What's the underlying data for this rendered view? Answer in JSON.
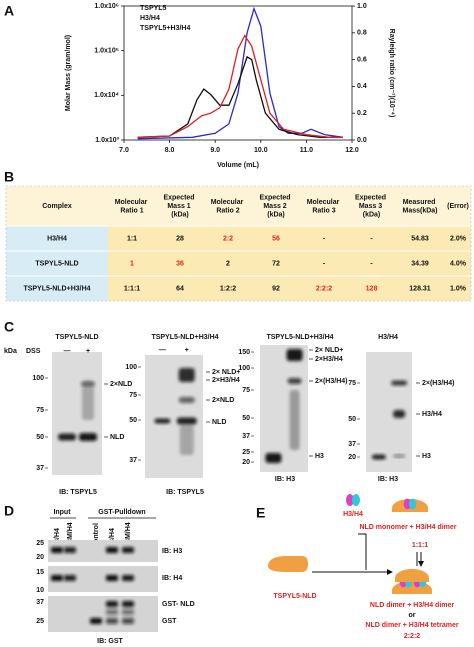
{
  "panel_a": {
    "letter": "A",
    "x_label": "Volume (mL)",
    "y_label": "Molar Mass (gram/mol)",
    "y2_label": "Rayleigh ratio (cm⁻¹)(10⁻⁴)",
    "xlim": [
      7,
      12
    ],
    "xticks": [
      {
        "value": 7,
        "label": "7.0"
      },
      {
        "value": 8,
        "label": "8.0"
      },
      {
        "value": 9,
        "label": "9.0"
      },
      {
        "value": 10,
        "label": "10.0"
      },
      {
        "value": 11,
        "label": "11.0"
      },
      {
        "value": 12,
        "label": "12.0"
      }
    ],
    "ylim": [
      1000,
      1000000
    ],
    "log_y": true,
    "yticks": [
      {
        "value": 1000,
        "label": "1.0x10³"
      },
      {
        "value": 10000,
        "label": "1.0x10⁴"
      },
      {
        "value": 100000,
        "label": "1.0x10⁵"
      },
      {
        "value": 1000000,
        "label": "1.0x10⁶"
      }
    ],
    "y2lim": [
      0,
      1
    ],
    "y2ticks": [
      {
        "value": 0,
        "label": "0.0"
      },
      0.2,
      0.4,
      0.6,
      0.8,
      {
        "value": 1,
        "label": "1.0"
      }
    ],
    "series": [
      {
        "name": "TSPYL5",
        "color": "#2a2ad0",
        "axis": "y2",
        "x": [
          7.3,
          8.5,
          9.0,
          9.3,
          9.5,
          9.7,
          9.85,
          10.0,
          10.2,
          10.4,
          10.6,
          10.9,
          11.1,
          11.4,
          11.8
        ],
        "values": [
          0.01,
          0.02,
          0.05,
          0.12,
          0.35,
          0.8,
          0.98,
          0.85,
          0.35,
          0.1,
          0.05,
          0.05,
          0.08,
          0.04,
          0.02
        ]
      },
      {
        "name": "H3/H4",
        "color": "#111111",
        "axis": "y2",
        "x": [
          7.3,
          8.0,
          8.4,
          8.6,
          8.75,
          8.9,
          9.1,
          9.3,
          9.5,
          9.7,
          9.8,
          9.9,
          10.1,
          10.4,
          10.8,
          11.3,
          11.8
        ],
        "values": [
          0.02,
          0.03,
          0.12,
          0.3,
          0.38,
          0.34,
          0.26,
          0.26,
          0.42,
          0.62,
          0.6,
          0.45,
          0.2,
          0.08,
          0.04,
          0.02,
          0.02
        ]
      },
      {
        "name": "TSPYL5+H3/H4",
        "color": "#e02020",
        "axis": "y2",
        "x": [
          7.3,
          8.0,
          8.4,
          8.7,
          8.9,
          9.1,
          9.3,
          9.5,
          9.65,
          9.8,
          10.0,
          10.2,
          10.5,
          11.0,
          11.5,
          11.8
        ],
        "values": [
          0.02,
          0.03,
          0.1,
          0.18,
          0.2,
          0.24,
          0.38,
          0.68,
          0.78,
          0.7,
          0.45,
          0.2,
          0.08,
          0.04,
          0.02,
          0.02
        ]
      }
    ]
  },
  "panel_b": {
    "letter": "B",
    "header": [
      "Complex",
      "Molecular Ratio 1",
      "Expected Mass 1 (kDa)",
      "Molecular Ratio 2",
      "Expected Mass 2 (kDa)",
      "Molecular Ratio 3",
      "Expected Mass 3 (kDa)",
      "Measured Mass(kDa)",
      "(Error)"
    ],
    "rows": [
      [
        "H3/H4",
        "1:1",
        "28",
        "2:2",
        "56",
        "-",
        "-",
        "54.83",
        "2.0%"
      ],
      [
        "TSPYL5-NLD",
        "1",
        "36",
        "2",
        "72",
        "-",
        "-",
        "34.39",
        "4.0%"
      ],
      [
        "TSPYL5-NLD+H3/H4",
        "1:1:1",
        "64",
        "1:2:2",
        "92",
        "2:2:2",
        "128",
        "128.31",
        "1.0%"
      ]
    ]
  },
  "panel_c": {
    "letter": "C",
    "kda": "kDa",
    "dss": "DSS",
    "blots": [
      {
        "title": "TSPYL5-NLD",
        "lanes": [
          "—",
          "+"
        ],
        "markers": [
          "100",
          "75",
          "50",
          "37"
        ],
        "annotations": [
          "2×NLD",
          "NLD"
        ],
        "ib": "IB: TSPYL5"
      },
      {
        "title": "TSPYL5-NLD+H3/H4",
        "lanes": [
          "—",
          "+"
        ],
        "markers": [
          "100",
          "75",
          "50",
          "37"
        ],
        "annotations": [
          "2× NLD+",
          "2×H3/H4",
          "2×NLD",
          "NLD"
        ],
        "ib": "IB: TSPYL5"
      },
      {
        "title": "TSPYL5-NLD+H3/H4",
        "lanes": [
          "—",
          "+"
        ],
        "markers": [
          "150",
          "100",
          "75",
          "50",
          "37",
          "25",
          "20"
        ],
        "annotations": [
          "2× NLD+",
          "2×H3/H4",
          "2×(H3/H4)",
          "H3"
        ],
        "ib": "IB: H3"
      },
      {
        "title": "H3/H4",
        "lanes": [
          "—",
          "+"
        ],
        "markers": [
          "75",
          "50",
          "37",
          "20"
        ],
        "annotations": [
          "2×(H3/H4)",
          "H3/H4",
          "H3"
        ],
        "ib": "IB: H3"
      }
    ]
  },
  "panel_d": {
    "letter": "D",
    "input": "Input",
    "pulldown": "GST-Pulldown",
    "lanes": [
      "H3/H4",
      "H3M/H4",
      "Control",
      "H3/H4",
      "H3M/H4"
    ],
    "markers": [
      "25",
      "20",
      "15",
      "10",
      "37",
      "25"
    ],
    "labels": [
      "IB: H3",
      "IB: H4",
      "GST- NLD",
      "GST"
    ],
    "ib": "IB: GST"
  },
  "panel_e": {
    "letter": "E",
    "h3h4": "H3/H4",
    "monomer": "NLD monomer + H3/H4 dimer",
    "ratio1": "1:1:1",
    "nld": "TSPYL5-NLD",
    "dimer1": "NLD dimer + H3/H4 dimer",
    "or": "or",
    "dimer2": "NLD dimer + H3/H4 tetramer",
    "ratio2": "2:2:2"
  }
}
